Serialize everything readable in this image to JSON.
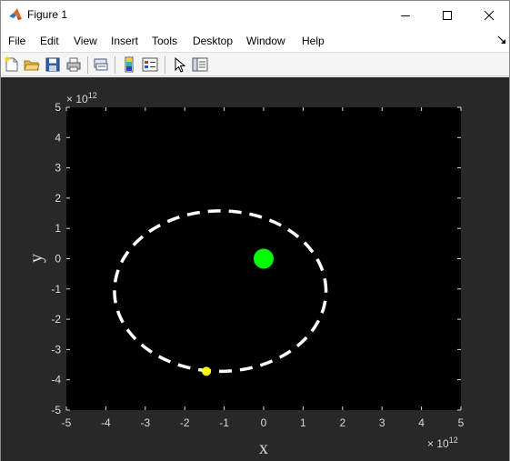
{
  "window": {
    "title": "Figure 1",
    "app_icon": "matlab-icon",
    "controls": [
      "minimize-icon",
      "maximize-icon",
      "close-icon"
    ]
  },
  "menu": {
    "items": [
      "File",
      "Edit",
      "View",
      "Insert",
      "Tools",
      "Desktop",
      "Window",
      "Help"
    ],
    "dock_icon": "dock-arrow-icon"
  },
  "toolbar": {
    "icons": [
      "new-figure-icon",
      "open-file-icon",
      "save-icon",
      "print-icon",
      "link-plot-icon",
      "insert-colorbar-icon",
      "insert-legend-icon",
      "edit-plot-icon",
      "property-inspector-icon"
    ]
  },
  "colors": {
    "figure_bg": "#282828",
    "axes_bg": "#000000",
    "axis_text": "#d9d9d9",
    "orbit": "#ffffff",
    "star": "#00ff00",
    "planet": "#ffff00"
  },
  "chart_data": {
    "type": "scatter",
    "xlabel": "x",
    "ylabel": "y",
    "xlim": [
      -5,
      5
    ],
    "ylim": [
      -5,
      5
    ],
    "x_exponent": "× 10",
    "x_exponent_power": "12",
    "y_exponent": "× 10",
    "y_exponent_power": "12",
    "xticks": [
      -5,
      -4,
      -3,
      -2,
      -1,
      0,
      1,
      2,
      3,
      4,
      5
    ],
    "yticks": [
      -5,
      -4,
      -3,
      -2,
      -1,
      0,
      1,
      2,
      3,
      4,
      5
    ],
    "grid": false,
    "orbit": {
      "style": "dashed",
      "center": [
        -1.1,
        -1.07
      ],
      "semi_axis_x": 2.68,
      "semi_axis_y": 2.65
    },
    "star": {
      "x": 0,
      "y": 0
    },
    "planet": {
      "x": -1.45,
      "y": -3.72
    }
  }
}
